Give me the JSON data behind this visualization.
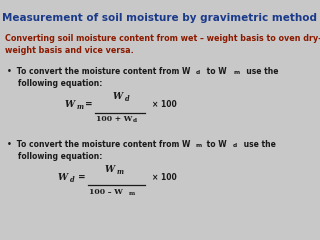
{
  "title": "Measurement of soil moisture by gravimetric method",
  "title_color": "#1a3a8a",
  "subtitle_line1": "Converting soil moisture content from wet – weight basis to oven dry-",
  "subtitle_line2": "weight basis and vice versa.",
  "subtitle_color": "#8b1a00",
  "bg_color": "#c8c8c8",
  "text_color": "#1a1a1a",
  "bullet": "•",
  "b1_line1": " To convert the moisture content from W",
  "b1_sub1": "d",
  "b1_mid": " to W",
  "b1_sub2": "m",
  "b1_end": "  use the",
  "b1_line2": "following equation:",
  "eq1_lhs_W": "W",
  "eq1_lhs_sub": "m",
  "eq1_num_W": "W",
  "eq1_num_sub": "d",
  "eq1_den": "100 + W",
  "eq1_den_sub": "d",
  "eq1_rhs": "× 100",
  "b2_line1": " To convert the moisture content from W",
  "b2_sub1": "m",
  "b2_mid": " to W",
  "b2_sub2": "d",
  "b2_end": " use the",
  "b2_line2": "following equation:",
  "eq2_lhs_W": "W",
  "eq2_lhs_sub": "d",
  "eq2_num_W": "W",
  "eq2_num_sub": "m",
  "eq2_den": "100 – W",
  "eq2_den_sub": "m",
  "eq2_rhs": "× 100"
}
